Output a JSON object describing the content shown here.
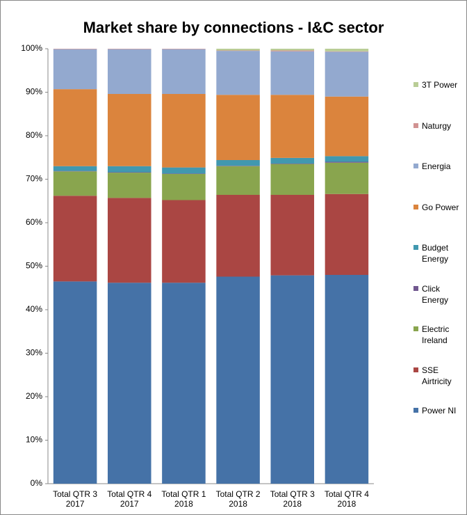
{
  "chart_data": {
    "type": "stacked_bar",
    "title": "Market share by connections - I&C sector",
    "categories": [
      "Total QTR 3 2017",
      "Total QTR 4 2017",
      "Total QTR 1 2018",
      "Total QTR 2 2018",
      "Total QTR 3 2018",
      "Total QTR 4 2018"
    ],
    "series": [
      {
        "name": "Power NI",
        "color": "#4572a7",
        "values": [
          46.5,
          46.2,
          46.2,
          47.6,
          47.9,
          48.0
        ]
      },
      {
        "name": "SSE Airtricity",
        "color": "#aa4643",
        "values": [
          19.7,
          19.5,
          19.0,
          18.8,
          18.5,
          18.6
        ]
      },
      {
        "name": "Electric Ireland",
        "color": "#89a54e",
        "values": [
          5.6,
          5.8,
          6.0,
          6.6,
          7.1,
          7.2
        ]
      },
      {
        "name": "Click Energy",
        "color": "#71588f",
        "values": [
          0.1,
          0.1,
          0.1,
          0.1,
          0.1,
          0.2
        ]
      },
      {
        "name": "Budget Energy",
        "color": "#4198af",
        "values": [
          1.1,
          1.4,
          1.4,
          1.3,
          1.3,
          1.3
        ]
      },
      {
        "name": "Go Power",
        "color": "#db843d",
        "values": [
          17.7,
          16.6,
          16.9,
          15.0,
          14.5,
          13.7
        ]
      },
      {
        "name": "Energia",
        "color": "#93a9cf",
        "values": [
          9.2,
          10.3,
          10.3,
          10.1,
          10.0,
          10.3
        ]
      },
      {
        "name": "Naturgy",
        "color": "#d19392",
        "values": [
          0.1,
          0.1,
          0.1,
          0.1,
          0.2,
          0.1
        ]
      },
      {
        "name": "3T Power",
        "color": "#b9cd96",
        "values": [
          0,
          0,
          0,
          0.4,
          0.4,
          0.6
        ]
      }
    ],
    "ylim": [
      0,
      100
    ],
    "yticks": [
      {
        "value": 0,
        "label": "0%"
      },
      {
        "value": 10,
        "label": "10%"
      },
      {
        "value": 20,
        "label": "20%"
      },
      {
        "value": 30,
        "label": "30%"
      },
      {
        "value": 40,
        "label": "40%"
      },
      {
        "value": 50,
        "label": "50%"
      },
      {
        "value": 60,
        "label": "60%"
      },
      {
        "value": 70,
        "label": "70%"
      },
      {
        "value": 80,
        "label": "80%"
      },
      {
        "value": 90,
        "label": "90%"
      },
      {
        "value": 100,
        "label": "100%"
      }
    ],
    "grid": false,
    "legend": "right"
  }
}
